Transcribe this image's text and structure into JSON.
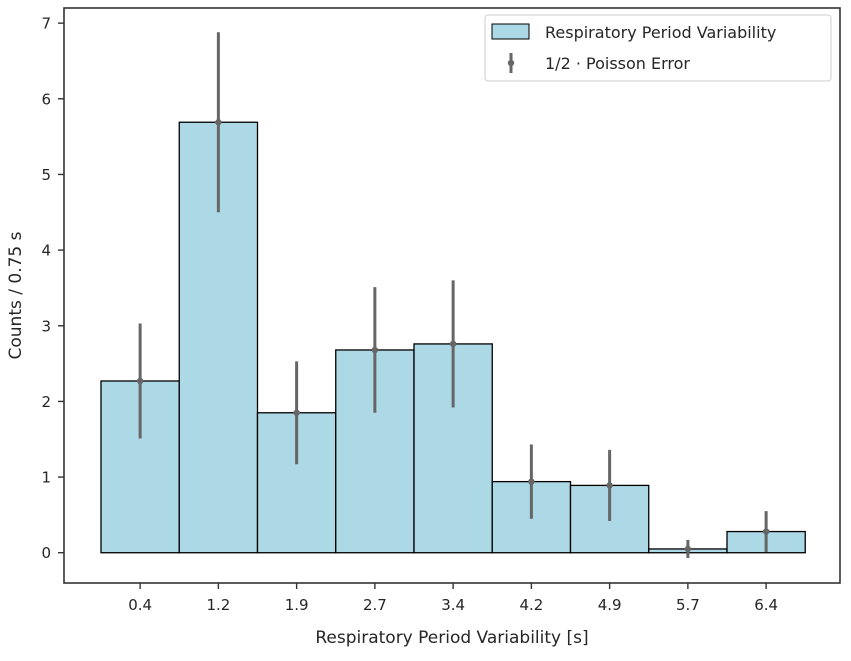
{
  "chart_data": {
    "type": "bar",
    "categories": [
      "0.4",
      "1.2",
      "1.9",
      "2.7",
      "3.4",
      "4.2",
      "4.9",
      "5.7",
      "6.4"
    ],
    "bin_centers": [
      0.4,
      1.2,
      1.9,
      2.7,
      3.4,
      4.2,
      4.9,
      5.7,
      6.4
    ],
    "values": [
      2.27,
      5.69,
      1.85,
      2.68,
      2.76,
      0.94,
      0.89,
      0.05,
      0.28
    ],
    "errors": [
      0.76,
      1.19,
      0.68,
      0.83,
      0.84,
      0.49,
      0.47,
      0.12,
      0.27
    ],
    "xlabel": "Respiratory Period Variability [s]",
    "ylabel": "Counts / 0.75 s",
    "yticks": [
      0,
      1,
      2,
      3,
      4,
      5,
      6,
      7
    ],
    "ylim": [
      -0.4,
      7.2
    ],
    "grid": false,
    "legend_position": "top-right",
    "legend": [
      {
        "label": "Respiratory Period Variability",
        "kind": "bar"
      },
      {
        "label": "1/2 · Poisson Error",
        "kind": "errorbar"
      }
    ],
    "colors": {
      "bar_fill": "#add8e6",
      "bar_edge": "#000000",
      "error": "#666666",
      "axes": "#333333",
      "text": "#262626"
    }
  }
}
